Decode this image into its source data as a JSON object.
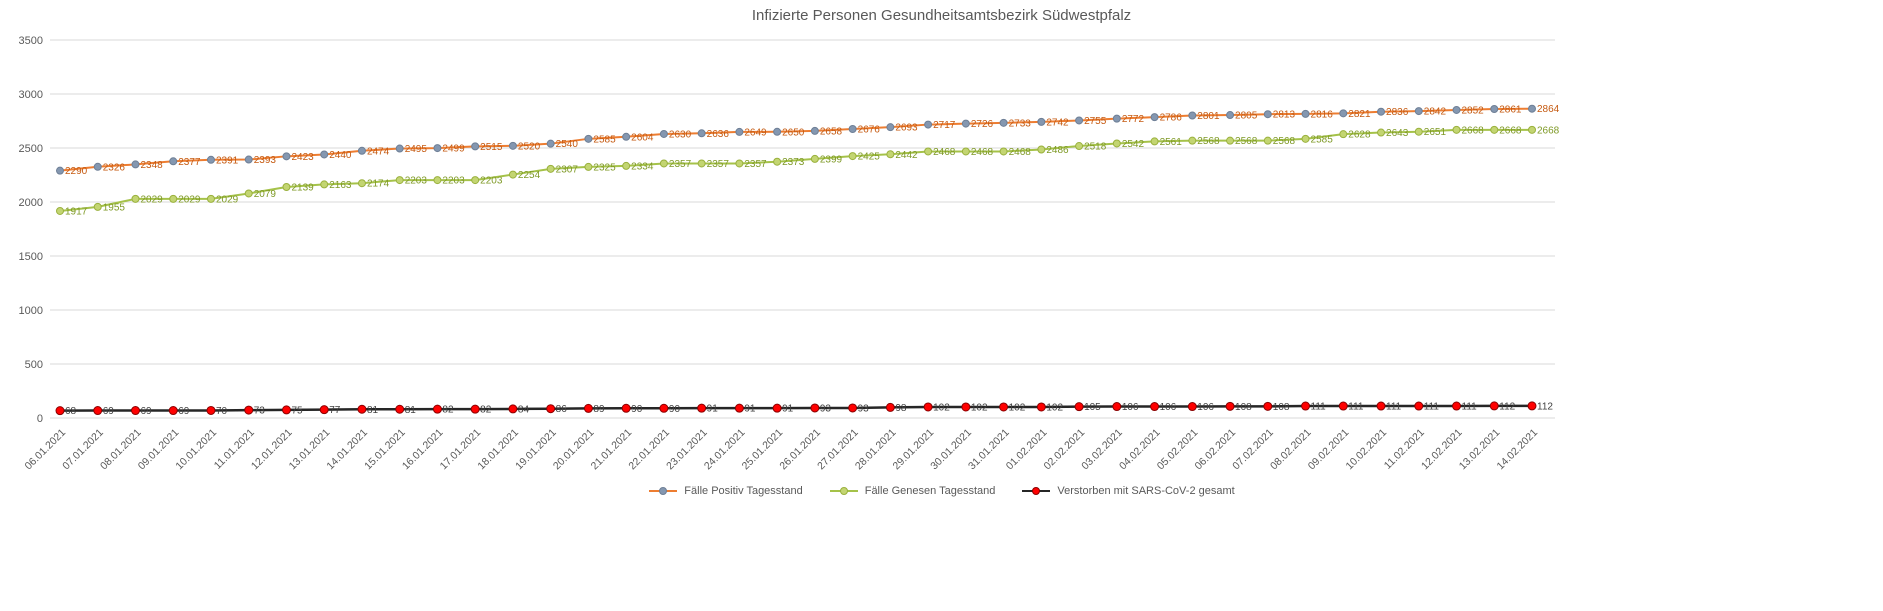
{
  "chart_data": {
    "type": "line",
    "title": "Infizierte Personen Gesundheitsamtsbezirk Südwestpfalz",
    "grid": true,
    "legend_position": "bottom",
    "ylim": [
      0,
      3500
    ],
    "ytick_step": 500,
    "grid_color": "#D9D9D9",
    "axis_text_color": "#595959",
    "categories": [
      "06.01.2021",
      "07.01.2021",
      "08.01.2021",
      "09.01.2021",
      "10.01.2021",
      "11.01.2021",
      "12.01.2021",
      "13.01.2021",
      "14.01.2021",
      "15.01.2021",
      "16.01.2021",
      "17.01.2021",
      "18.01.2021",
      "19.01.2021",
      "20.01.2021",
      "21.01.2021",
      "22.01.2021",
      "23.01.2021",
      "24.01.2021",
      "25.01.2021",
      "26.01.2021",
      "27.01.2021",
      "28.01.2021",
      "29.01.2021",
      "30.01.2021",
      "31.01.2021",
      "01.02.2021",
      "02.02.2021",
      "03.02.2021",
      "04.02.2021",
      "05.02.2021",
      "06.02.2021",
      "07.02.2021",
      "08.02.2021",
      "09.02.2021",
      "10.02.2021",
      "11.02.2021",
      "12.02.2021",
      "13.02.2021",
      "14.02.2021"
    ],
    "series": [
      {
        "name": "Fälle Positiv Tagesstand",
        "line_color": "#ED7D31",
        "marker_color": "#8497B0",
        "marker_stroke": "#6E7F96",
        "label_color": "#C55A11",
        "values": [
          2290,
          2326,
          2348,
          2377,
          2391,
          2393,
          2423,
          2440,
          2474,
          2495,
          2499,
          2515,
          2520,
          2540,
          2585,
          2604,
          2630,
          2636,
          2649,
          2650,
          2658,
          2676,
          2693,
          2717,
          2726,
          2733,
          2742,
          2755,
          2772,
          2786,
          2801,
          2805,
          2813,
          2816,
          2821,
          2836,
          2842,
          2852,
          2861,
          2864
        ]
      },
      {
        "name": "Fälle Genesen Tagesstand",
        "line_color": "#A5C249",
        "marker_color": "#C3D572",
        "marker_stroke": "#9AB13D",
        "label_color": "#7F9A27",
        "values": [
          1917,
          1955,
          2029,
          2029,
          2029,
          2079,
          2139,
          2163,
          2174,
          2203,
          2203,
          2203,
          2254,
          2307,
          2325,
          2334,
          2357,
          2357,
          2357,
          2373,
          2399,
          2425,
          2442,
          2468,
          2468,
          2468,
          2486,
          2518,
          2542,
          2561,
          2568,
          2568,
          2568,
          2585,
          2628,
          2643,
          2651,
          2668,
          2668,
          2668
        ]
      },
      {
        "name": "Verstorben mit SARS-CoV-2 gesamt",
        "line_color": "#262626",
        "marker_color": "#FF0000",
        "marker_stroke": "#8B0000",
        "label_color": "#404040",
        "values": [
          68,
          69,
          69,
          69,
          70,
          73,
          75,
          77,
          81,
          81,
          82,
          82,
          84,
          86,
          89,
          90,
          90,
          91,
          91,
          91,
          93,
          93,
          98,
          102,
          102,
          102,
          102,
          105,
          106,
          106,
          106,
          108,
          108,
          111,
          111,
          111,
          111,
          111,
          112,
          112
        ]
      }
    ]
  }
}
